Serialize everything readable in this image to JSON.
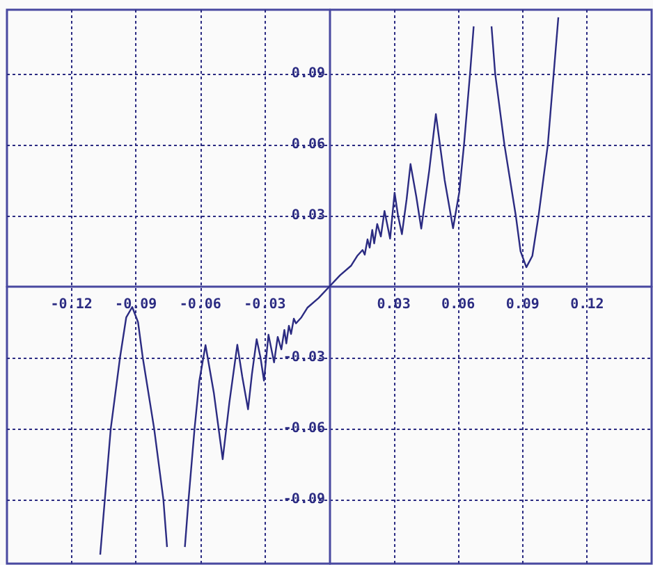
{
  "chart_data": {
    "type": "line",
    "color": "#2b2b82",
    "xlim": [
      -0.15,
      0.15
    ],
    "ylim": [
      -0.117,
      0.117
    ],
    "xticks": [
      -0.12,
      -0.09,
      -0.06,
      -0.03,
      0.03,
      0.06,
      0.09,
      0.12
    ],
    "yticks": [
      -0.09,
      -0.06,
      -0.03,
      0.03,
      0.06,
      0.09
    ],
    "grid": true,
    "marker": "none",
    "line_style": "solid",
    "x": [
      -0.1066,
      -0.1017,
      -0.0974,
      -0.0945,
      -0.0917,
      -0.089,
      -0.0868,
      -0.0815,
      -0.0772,
      -0.0755,
      -0.071,
      -0.0672,
      -0.0655,
      -0.0627,
      -0.0605,
      -0.0576,
      -0.0537,
      -0.0496,
      -0.0465,
      -0.0428,
      -0.0405,
      -0.0378,
      -0.036,
      -0.0338,
      -0.032,
      -0.0304,
      -0.0283,
      -0.0257,
      -0.024,
      -0.0223,
      -0.0209,
      -0.02,
      -0.0188,
      -0.0178,
      -0.0165,
      -0.0155,
      -0.013,
      -0.0102,
      -0.005,
      0,
      0.005,
      0.0102,
      0.013,
      0.0155,
      0.0165,
      0.0178,
      0.0188,
      0.02,
      0.0209,
      0.0223,
      0.024,
      0.0257,
      0.0283,
      0.0304,
      0.032,
      0.0338,
      0.036,
      0.0378,
      0.0405,
      0.0428,
      0.0465,
      0.0496,
      0.0537,
      0.0576,
      0.0605,
      0.0627,
      0.0655,
      0.0672,
      0.071,
      0.0755,
      0.0772,
      0.0815,
      0.0868,
      0.089,
      0.0917,
      0.0945,
      0.0974,
      0.1017,
      0.1066
    ],
    "values": [
      -0.1132,
      -0.06,
      -0.03,
      -0.013,
      -0.0086,
      -0.015,
      -0.03,
      -0.06,
      -0.09,
      -0.11,
      null,
      -0.11,
      -0.09,
      -0.06,
      -0.04,
      -0.0247,
      -0.045,
      -0.0729,
      -0.049,
      -0.0245,
      -0.038,
      -0.0518,
      -0.037,
      -0.0222,
      -0.03,
      -0.0397,
      -0.0203,
      -0.032,
      -0.0212,
      -0.0265,
      -0.0183,
      -0.024,
      -0.0165,
      -0.02,
      -0.0135,
      -0.0155,
      -0.013,
      -0.0089,
      -0.0048,
      0,
      0.0048,
      0.0089,
      0.013,
      0.0155,
      0.0135,
      0.02,
      0.0165,
      0.024,
      0.0183,
      0.0265,
      0.0212,
      0.032,
      0.0203,
      0.0397,
      0.03,
      0.0222,
      0.037,
      0.0518,
      0.038,
      0.0245,
      0.049,
      0.0729,
      0.045,
      0.0247,
      0.04,
      0.06,
      0.09,
      0.11,
      null,
      0.11,
      0.09,
      0.06,
      0.03,
      0.015,
      0.0082,
      0.013,
      0.03,
      0.06,
      0.1138
    ]
  }
}
